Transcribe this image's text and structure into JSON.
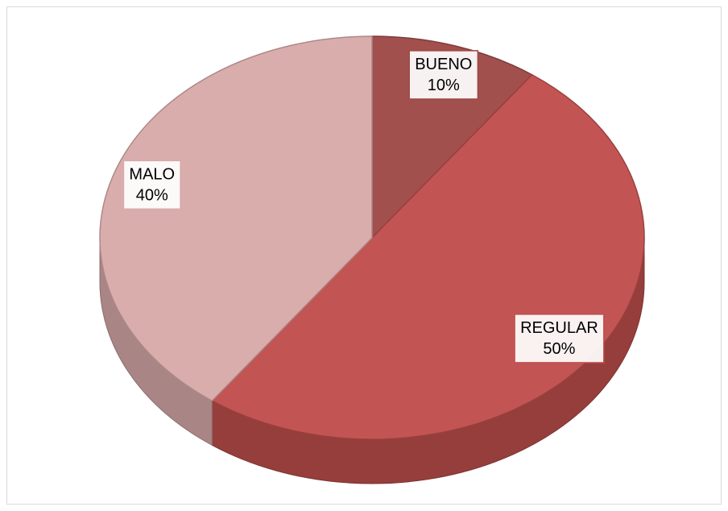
{
  "chart_data": {
    "type": "pie",
    "categories": [
      "BUENO",
      "REGULAR",
      "MALO"
    ],
    "values": [
      10,
      50,
      40
    ],
    "value_labels": [
      "10%",
      "50%",
      "40%"
    ],
    "colors": [
      "#9e4a48",
      "#c0504d",
      "#d9aaaa"
    ]
  }
}
